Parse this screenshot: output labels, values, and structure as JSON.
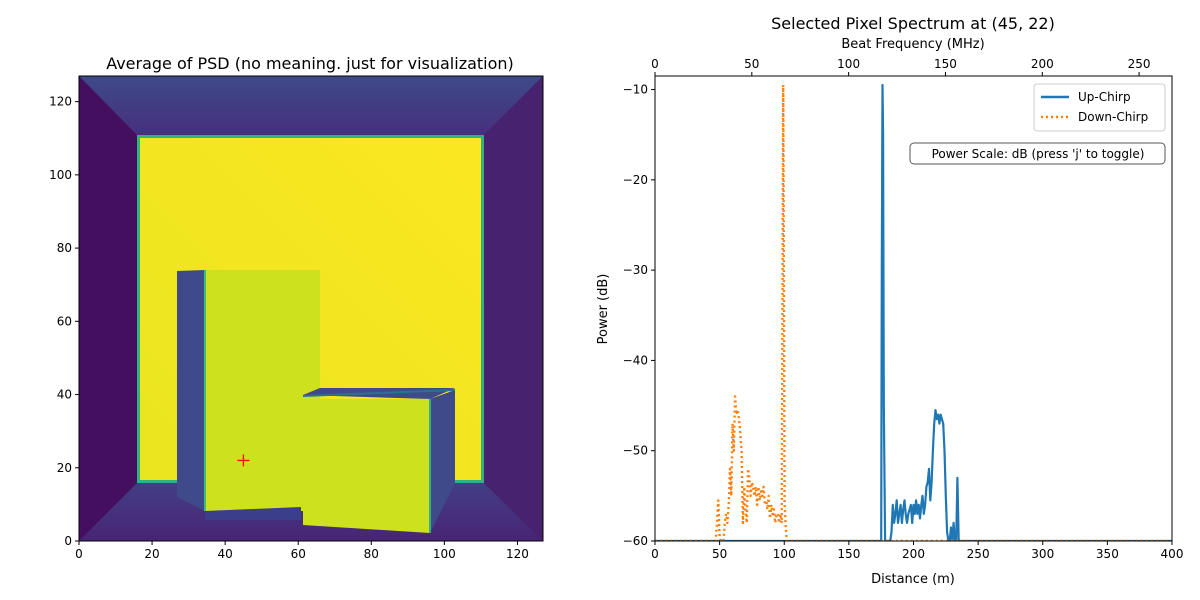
{
  "chart_data": [
    {
      "type": "heatmap",
      "title": "Average of PSD (no meaning. just for visualization)",
      "xlim": [
        0,
        127
      ],
      "ylim": [
        0,
        127
      ],
      "xticks": [
        0,
        20,
        40,
        60,
        80,
        100,
        120
      ],
      "yticks": [
        0,
        20,
        40,
        60,
        80,
        100,
        120
      ],
      "colormap": "viridis",
      "colors": {
        "background": "#472f7d",
        "bright": "#f4e51f",
        "mid": "#cde11d",
        "dark": "#3b3f8b",
        "edge": "#33b183"
      },
      "regions": [
        {
          "name": "outer-frame",
          "x": [
            0,
            127
          ],
          "y": [
            0,
            127
          ],
          "level": 0.1
        },
        {
          "name": "back-wall",
          "x": [
            16,
            111
          ],
          "y": [
            16,
            111
          ],
          "level": 0.97
        },
        {
          "name": "left-block-side",
          "x": [
            27,
            35
          ],
          "y": [
            8,
            74
          ],
          "level": 0.2
        },
        {
          "name": "left-block-face",
          "x": [
            35,
            66
          ],
          "y": [
            8,
            74
          ],
          "level": 0.88
        },
        {
          "name": "right-block-side",
          "x": [
            96,
            103
          ],
          "y": [
            2,
            41
          ],
          "level": 0.2
        },
        {
          "name": "right-block-face",
          "x": [
            61,
            96
          ],
          "y": [
            2,
            39
          ],
          "level": 0.88
        }
      ],
      "marker": {
        "x": 45,
        "y": 22,
        "symbol": "+",
        "color": "#ff0000"
      }
    },
    {
      "type": "line",
      "title": "Selected Pixel Spectrum at (45, 22)",
      "xlabel": "Distance (m)",
      "ylabel": "Power (dB)",
      "top_xlabel": "Beat Frequency (MHz)",
      "xlim": [
        0,
        400
      ],
      "ylim": [
        -60,
        -8.5
      ],
      "top_xlim": [
        0,
        267
      ],
      "xticks": [
        0,
        50,
        100,
        150,
        200,
        250,
        300,
        350,
        400
      ],
      "yticks": [
        -60,
        -50,
        -40,
        -30,
        -20,
        -10
      ],
      "top_xticks": [
        0,
        50,
        100,
        150,
        200,
        250
      ],
      "legend": "top-right",
      "annotation": "Power Scale: dB (press 'j' to toggle)",
      "series": [
        {
          "name": "Up-Chirp",
          "color": "#1f77b4",
          "style": "solid",
          "x": [
            0,
            175,
            175.5,
            176,
            176.5,
            177,
            178,
            178.5,
            179,
            180,
            182,
            183,
            184,
            185,
            186,
            187,
            188,
            189,
            190,
            191,
            192,
            193,
            194,
            195,
            196,
            197,
            198,
            199,
            200,
            201,
            202,
            203,
            204,
            205,
            206,
            207,
            208,
            209,
            210,
            211,
            212,
            213,
            214,
            215,
            216,
            217,
            218,
            219,
            220,
            221,
            222,
            223,
            224,
            225,
            226,
            227,
            228,
            229,
            230,
            231,
            232,
            233,
            234,
            235,
            236,
            237,
            238,
            239,
            240,
            241,
            242,
            243,
            244,
            245,
            246,
            247,
            248,
            249,
            250,
            250.5,
            251,
            251.5,
            252,
            400
          ],
          "y": [
            -60,
            -60,
            -30,
            -9.5,
            -15,
            -45,
            -60,
            -60,
            -60,
            -60,
            -60,
            -59,
            -56,
            -58,
            -57,
            -55.5,
            -58,
            -57,
            -56,
            -58,
            -56.5,
            -55.5,
            -57,
            -58,
            -57,
            -56.5,
            -56,
            -58,
            -56,
            -57,
            -55.5,
            -57,
            -56,
            -57.5,
            -56,
            -55,
            -57,
            -56,
            -54,
            -53.5,
            -52,
            -55.5,
            -53.5,
            -50,
            -47,
            -45.5,
            -46.5,
            -46,
            -47,
            -46,
            -46.5,
            -47,
            -50,
            -55,
            -59,
            -60,
            -60,
            -58.5,
            -60,
            -58,
            -60,
            -60,
            -53,
            -60,
            -60,
            -60,
            -60,
            -60,
            -60,
            -60,
            -60,
            -60,
            -60,
            -60,
            -60,
            -60,
            -60,
            -60,
            -60,
            -60,
            -60,
            -60,
            -60,
            -60
          ]
        },
        {
          "name": "Down-Chirp",
          "color": "#ff7f0e",
          "style": "dotted",
          "x": [
            0,
            47,
            48,
            49,
            50,
            51,
            52,
            53,
            54,
            55,
            56,
            57,
            58,
            59,
            60,
            61,
            62,
            63,
            64,
            65,
            66,
            67,
            68,
            69,
            70,
            71,
            72,
            73,
            74,
            75,
            76,
            77,
            78,
            79,
            80,
            81,
            82,
            83,
            84,
            85,
            86,
            87,
            88,
            89,
            90,
            91,
            92,
            93,
            94,
            95,
            96,
            97,
            98,
            98.7,
            99.2,
            99.7,
            100.3,
            101,
            102,
            103,
            104,
            105,
            400
          ],
          "y": [
            -60,
            -60,
            -58,
            -55.5,
            -59.5,
            -60,
            -60,
            -60,
            -58,
            -57,
            -58,
            -56,
            -52,
            -55,
            -47,
            -50,
            -44,
            -46,
            -45.5,
            -46.5,
            -48,
            -50,
            -58,
            -54,
            -56.5,
            -58,
            -52,
            -53,
            -55,
            -53.5,
            -54,
            -55,
            -54,
            -56,
            -54,
            -55.5,
            -54.5,
            -55,
            -54,
            -56,
            -55.5,
            -56.5,
            -55,
            -57.5,
            -56,
            -57,
            -56.5,
            -58,
            -57,
            -57,
            -58,
            -57,
            -58,
            -30,
            -9.5,
            -30,
            -56,
            -58,
            -60,
            -60,
            -60,
            -60,
            -60
          ]
        }
      ]
    }
  ]
}
